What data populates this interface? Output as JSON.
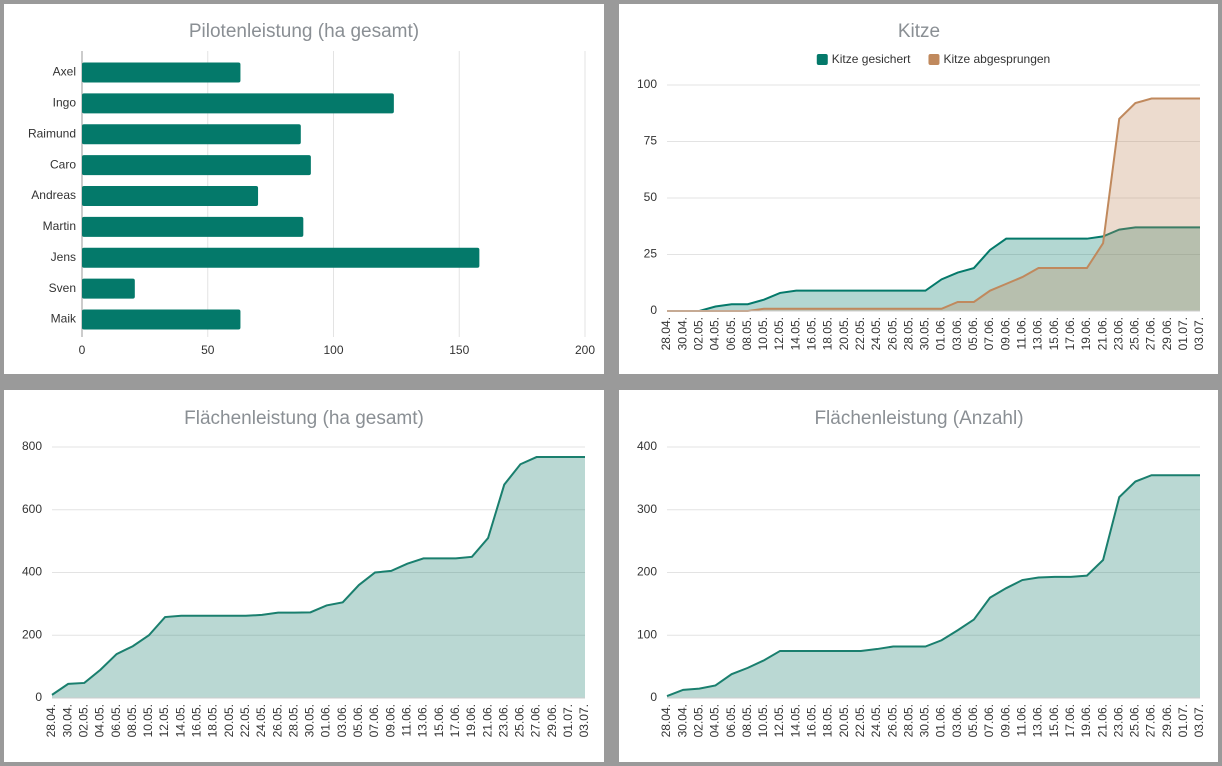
{
  "chart_data": [
    {
      "type": "hbar",
      "title": "Pilotenleistung (ha gesamt)",
      "categories": [
        "Axel",
        "Ingo",
        "Raimund",
        "Caro",
        "Andreas",
        "Martin",
        "Jens",
        "Sven",
        "Maik"
      ],
      "values": [
        63,
        124,
        87,
        91,
        70,
        88,
        158,
        21,
        63
      ],
      "color": "#04796a",
      "xlim": [
        0,
        200
      ],
      "xticks": [
        0,
        50,
        100,
        150,
        200
      ],
      "grid": true
    },
    {
      "type": "area",
      "title": "Kitze",
      "categories": [
        "28.04.",
        "30.04.",
        "02.05.",
        "04.05.",
        "06.05.",
        "08.05.",
        "10.05.",
        "12.05.",
        "14.05.",
        "16.05.",
        "18.05.",
        "20.05.",
        "22.05.",
        "24.05.",
        "26.05.",
        "28.05.",
        "30.05.",
        "01.06.",
        "03.06.",
        "05.06.",
        "07.06.",
        "09.06.",
        "11.06.",
        "13.06.",
        "15.06.",
        "17.06.",
        "19.06.",
        "21.06.",
        "23.06.",
        "25.06.",
        "27.06.",
        "29.06.",
        "01.07.",
        "03.07."
      ],
      "series": [
        {
          "name": "Kitze gesichert",
          "color": "#04796a",
          "values": [
            0,
            0,
            0,
            2,
            3,
            3,
            5,
            8,
            9,
            9,
            9,
            9,
            9,
            9,
            9,
            9,
            9,
            14,
            17,
            19,
            27,
            32,
            32,
            32,
            32,
            32,
            32,
            33,
            36,
            37,
            37,
            37,
            37,
            37
          ]
        },
        {
          "name": "Kitze abgesprungen",
          "color": "#c0895d",
          "values": [
            0,
            0,
            0,
            0,
            0,
            0,
            1,
            1,
            1,
            1,
            1,
            1,
            1,
            1,
            1,
            1,
            1,
            1,
            4,
            4,
            9,
            12,
            15,
            19,
            19,
            19,
            19,
            30,
            85,
            92,
            94,
            94,
            94,
            94
          ]
        }
      ],
      "ylim": [
        0,
        100
      ],
      "yticks": [
        0,
        25,
        50,
        75,
        100
      ],
      "grid": true,
      "legend": "top"
    },
    {
      "type": "area",
      "title": "Flächenleistung (ha gesamt)",
      "categories": [
        "28.04.",
        "30.04.",
        "02.05.",
        "04.05.",
        "06.05.",
        "08.05.",
        "10.05.",
        "12.05.",
        "14.05.",
        "16.05.",
        "18.05.",
        "20.05.",
        "22.05.",
        "24.05.",
        "26.05.",
        "28.05.",
        "30.05.",
        "01.06.",
        "03.06.",
        "05.06.",
        "07.06.",
        "09.06.",
        "11.06.",
        "13.06.",
        "15.06.",
        "17.06.",
        "19.06.",
        "21.06.",
        "23.06.",
        "25.06.",
        "27.06.",
        "29.06.",
        "01.07.",
        "03.07."
      ],
      "values": [
        10,
        45,
        48,
        90,
        140,
        165,
        200,
        258,
        262,
        262,
        262,
        262,
        262,
        265,
        272,
        272,
        273,
        295,
        305,
        360,
        400,
        405,
        428,
        445,
        445,
        445,
        450,
        510,
        680,
        745,
        768,
        768,
        768,
        768
      ],
      "color": "#1a7f6e",
      "ylim": [
        0,
        800
      ],
      "yticks": [
        0,
        200,
        400,
        600,
        800
      ],
      "grid": true
    },
    {
      "type": "area",
      "title": "Flächenleistung (Anzahl)",
      "categories": [
        "28.04.",
        "30.04.",
        "02.05.",
        "04.05.",
        "06.05.",
        "08.05.",
        "10.05.",
        "12.05.",
        "14.05.",
        "16.05.",
        "18.05.",
        "20.05.",
        "22.05.",
        "24.05.",
        "26.05.",
        "28.05.",
        "30.05.",
        "01.06.",
        "03.06.",
        "05.06.",
        "07.06.",
        "09.06.",
        "11.06.",
        "13.06.",
        "15.06.",
        "17.06.",
        "19.06.",
        "21.06.",
        "23.06.",
        "25.06.",
        "27.06.",
        "29.06.",
        "01.07.",
        "03.07."
      ],
      "values": [
        3,
        13,
        15,
        20,
        38,
        48,
        60,
        75,
        75,
        75,
        75,
        75,
        75,
        78,
        82,
        82,
        82,
        92,
        108,
        125,
        160,
        175,
        188,
        192,
        193,
        193,
        195,
        220,
        320,
        345,
        355,
        355,
        355,
        355
      ],
      "color": "#1a7f6e",
      "ylim": [
        0,
        400
      ],
      "yticks": [
        0,
        100,
        200,
        300,
        400
      ],
      "grid": true
    }
  ]
}
